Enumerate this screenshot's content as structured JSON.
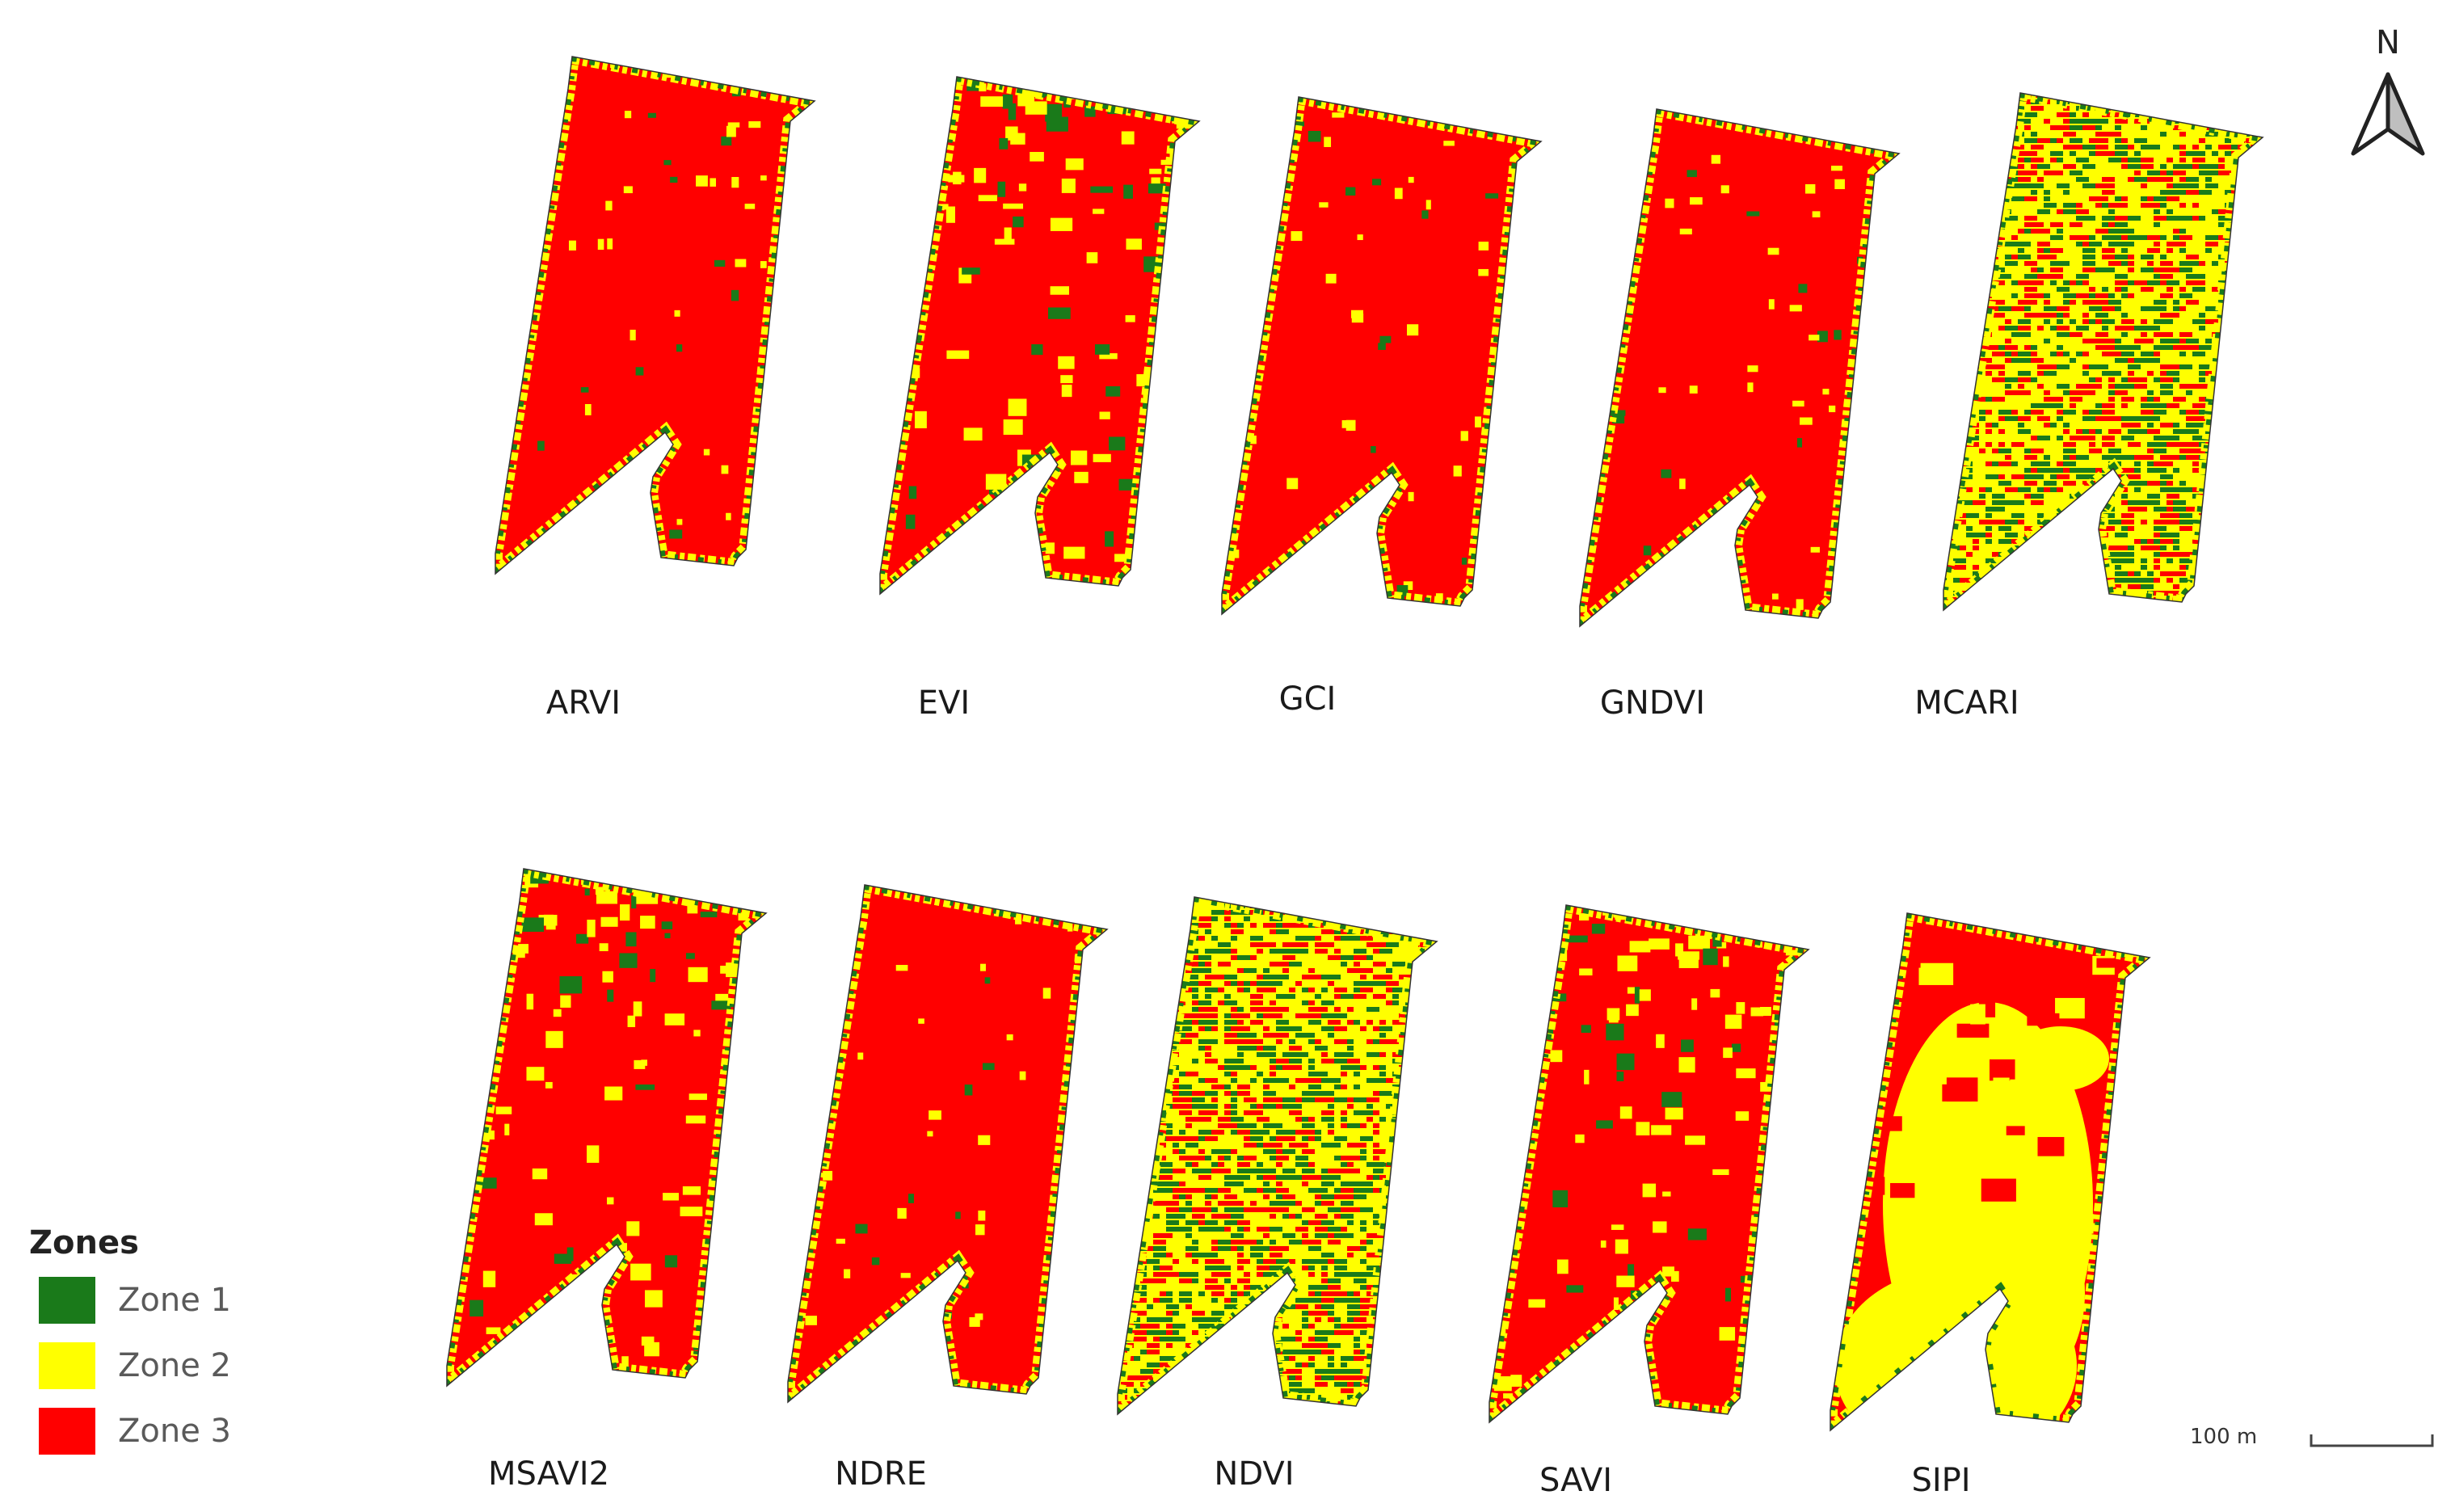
{
  "colors": {
    "zone1": "#1a7a1a",
    "zone2": "#ffff00",
    "zone3": "#ff0000",
    "background": "#ffffff",
    "outline": "#333333"
  },
  "panels": [
    {
      "label": "ARVI",
      "pattern": "mostly-zone3-thin-border"
    },
    {
      "label": "EVI",
      "pattern": "mostly-zone3-yellow-patches-top"
    },
    {
      "label": "GCI",
      "pattern": "mostly-zone3-thin-border"
    },
    {
      "label": "GNDVI",
      "pattern": "mostly-zone3-thin-border"
    },
    {
      "label": "MCARI",
      "pattern": "mixed-speckled"
    },
    {
      "label": "MSAVI2",
      "pattern": "mostly-zone3-yellow-patches-top"
    },
    {
      "label": "NDRE",
      "pattern": "mostly-zone3-thin-border"
    },
    {
      "label": "NDVI",
      "pattern": "mixed-speckled"
    },
    {
      "label": "SAVI",
      "pattern": "mostly-zone3-yellow-patches-top"
    },
    {
      "label": "SIPI",
      "pattern": "large-zone2-area"
    }
  ],
  "legend": {
    "title": "Zones",
    "items": [
      {
        "label": "Zone 1",
        "color": "#1a7a1a"
      },
      {
        "label": "Zone 2",
        "color": "#ffff00"
      },
      {
        "label": "Zone 3",
        "color": "#ff0000"
      }
    ]
  },
  "north_arrow": {
    "label": "N",
    "icon": "north-arrow-icon"
  },
  "scale_bar": {
    "label": "100 m"
  }
}
